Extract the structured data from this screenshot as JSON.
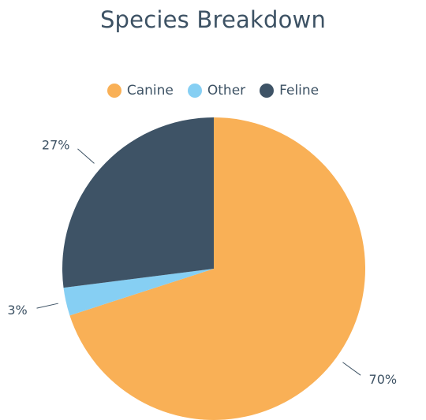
{
  "chart_data": {
    "type": "pie",
    "title": "Species Breakdown",
    "categories": [
      "Canine",
      "Other",
      "Feline"
    ],
    "values": [
      70,
      3,
      27
    ],
    "labels": [
      "70%",
      "3%",
      "27%"
    ],
    "colors": [
      "#f9b056",
      "#86cff3",
      "#3e5366"
    ],
    "legend_position": "top"
  }
}
